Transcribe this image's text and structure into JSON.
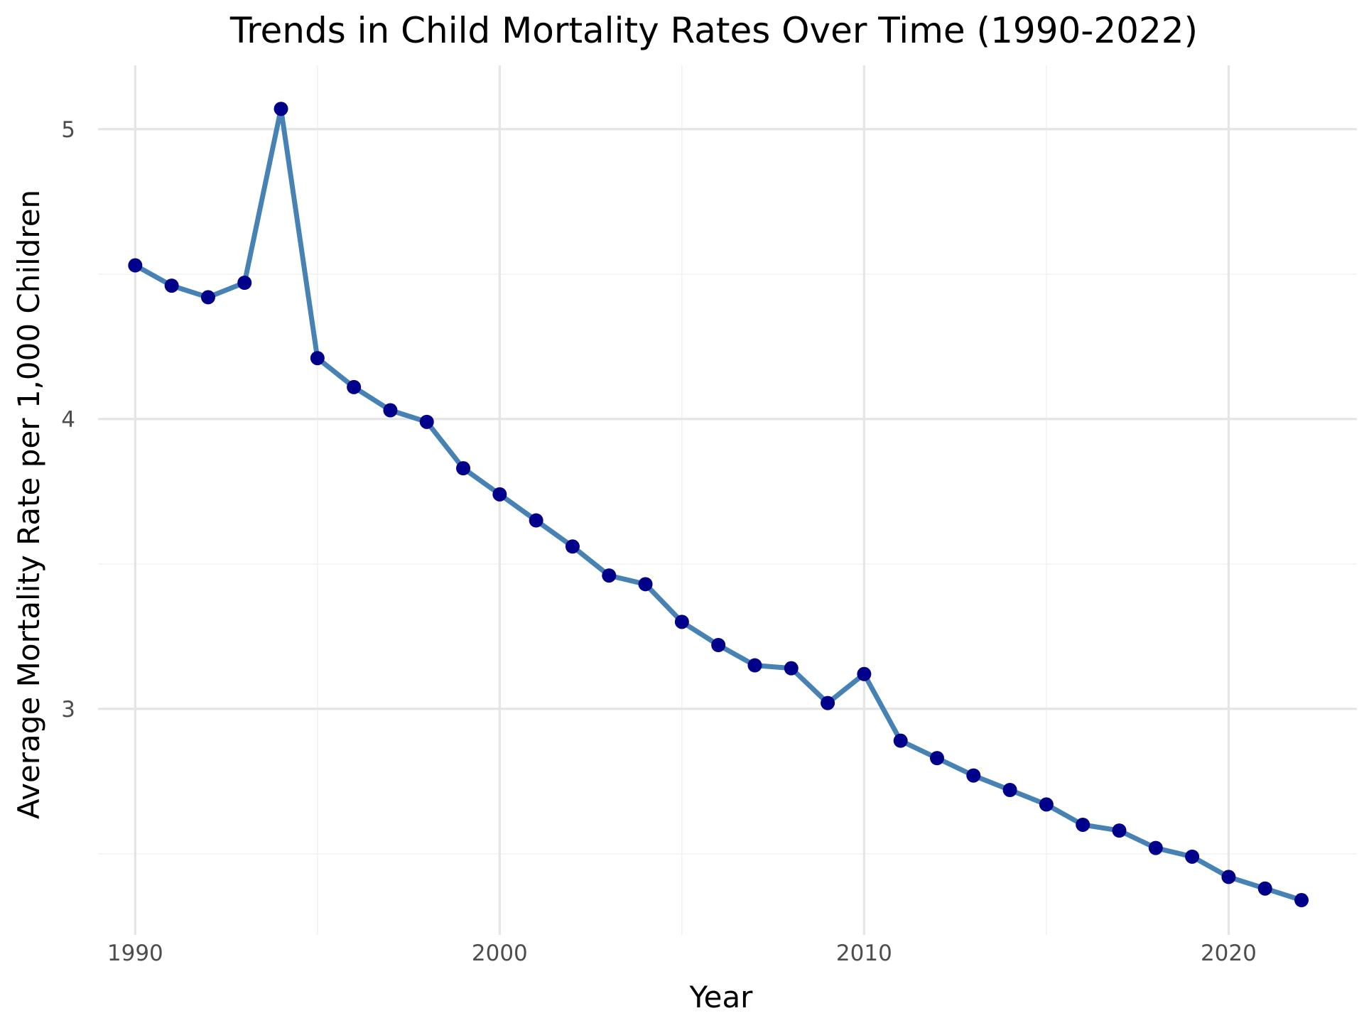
{
  "chart_data": {
    "type": "line",
    "title": "Trends in Child Mortality Rates Over Time (1990-2022)",
    "xlabel": "Year",
    "ylabel": "Average Mortality Rate per 1,000 Children",
    "xlim": [
      1988.98,
      2023.52
    ],
    "ylim": [
      2.22,
      5.22
    ],
    "x_ticks": [
      1990,
      2000,
      2010,
      2020
    ],
    "y_ticks": [
      3,
      4,
      5
    ],
    "x_minor_ticks": [
      1995,
      2005,
      2015
    ],
    "y_minor_ticks": [
      2.5,
      3.5,
      4.5
    ],
    "grid": true,
    "line_color": "#4682b4",
    "point_color": "#00008b",
    "series": [
      {
        "x": [
          1990,
          1991,
          1992,
          1993,
          1994,
          1995,
          1996,
          1997,
          1998,
          1999,
          2000,
          2001,
          2002,
          2003,
          2004,
          2005,
          2006,
          2007,
          2008,
          2009,
          2010,
          2011,
          2012,
          2013,
          2014,
          2015,
          2016,
          2017,
          2018,
          2019,
          2020,
          2021,
          2022
        ],
        "values": [
          4.53,
          4.46,
          4.42,
          4.47,
          5.07,
          4.21,
          4.11,
          4.03,
          3.99,
          3.83,
          3.74,
          3.65,
          3.56,
          3.46,
          3.43,
          3.3,
          3.22,
          3.15,
          3.14,
          3.02,
          3.12,
          2.89,
          2.83,
          2.77,
          2.72,
          2.67,
          2.6,
          2.58,
          2.52,
          2.49,
          2.42,
          2.38,
          2.34
        ]
      }
    ]
  }
}
